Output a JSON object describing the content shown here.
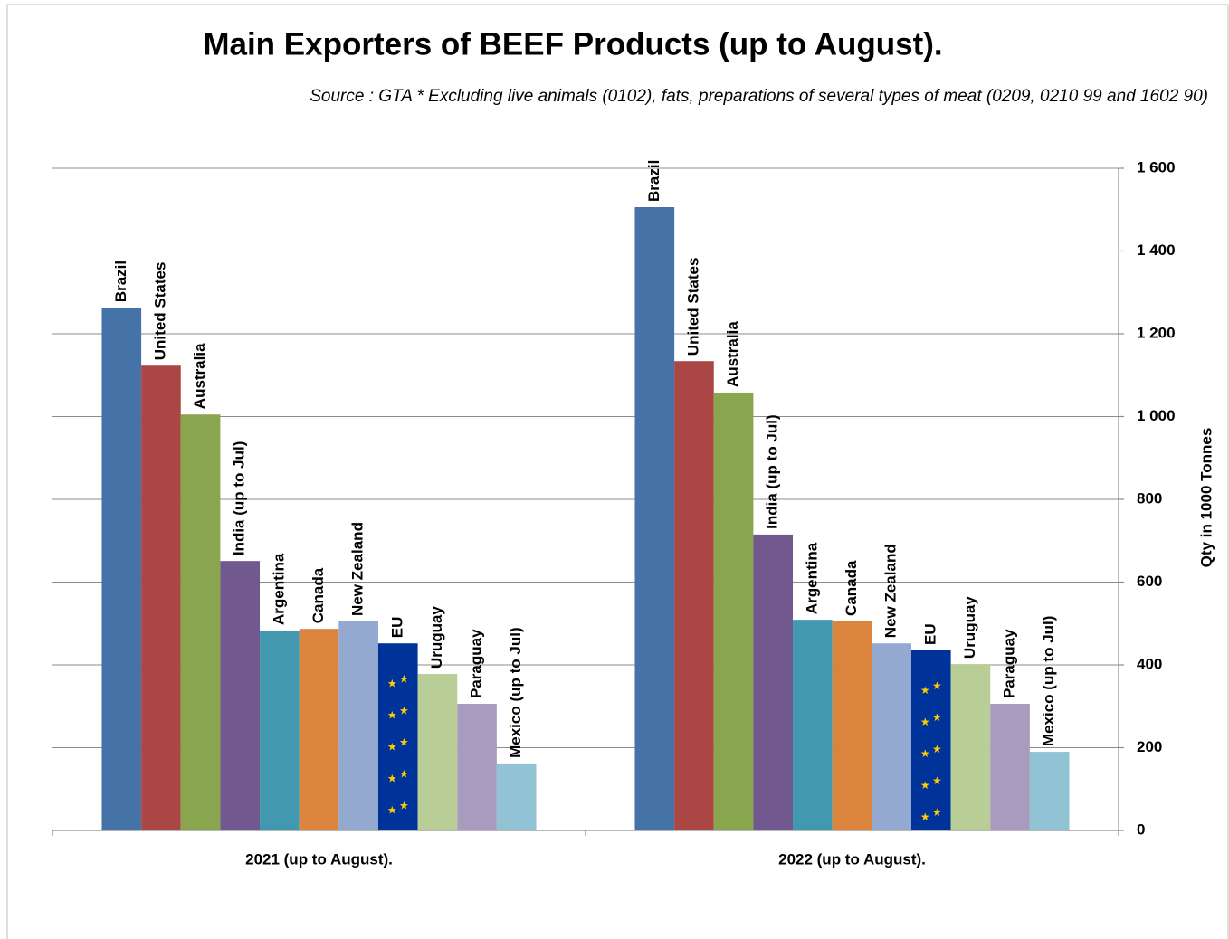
{
  "chart_data": {
    "type": "bar",
    "title": "Main Exporters of BEEF Products (up to August).",
    "subtitle": "Source : GTA * Excluding live animals (0102), fats, preparations of several types of meat (0209, 0210 99 and 1602 90)",
    "y_axis_label": "Qty in 1000 Tonnes",
    "categories": [
      "2021 (up to August).",
      "2022 (up to August)."
    ],
    "series": [
      {
        "name": "Brazil",
        "color": "#4572a7",
        "values": [
          1263,
          1506
        ]
      },
      {
        "name": "United States",
        "color": "#aa4643",
        "values": [
          1123,
          1134
        ]
      },
      {
        "name": "Australia",
        "color": "#89a54e",
        "values": [
          1005,
          1058
        ]
      },
      {
        "name": "India (up to Jul)",
        "color": "#71588f",
        "values": [
          651,
          715
        ]
      },
      {
        "name": "Argentina",
        "color": "#4198af",
        "values": [
          483,
          509
        ]
      },
      {
        "name": "Canada",
        "color": "#db843d",
        "values": [
          487,
          505
        ]
      },
      {
        "name": "New Zealand",
        "color": "#93a9cf",
        "values": [
          505,
          452
        ]
      },
      {
        "name": "EU",
        "color": "#003399",
        "values": [
          452,
          435
        ]
      },
      {
        "name": "Uruguay",
        "color": "#b9cd96",
        "values": [
          378,
          402
        ]
      },
      {
        "name": "Paraguay",
        "color": "#a99bbd",
        "values": [
          306,
          306
        ]
      },
      {
        "name": "Mexico (up to Jul)",
        "color": "#92c3d5",
        "values": [
          162,
          190
        ]
      }
    ],
    "ylim": [
      0,
      1600
    ],
    "yticks": [
      0,
      200,
      400,
      600,
      800,
      {
        "value": 1000,
        "label": "1 000"
      },
      {
        "value": 1200,
        "label": "1 200"
      },
      {
        "value": 1400,
        "label": "1 400"
      },
      {
        "value": 1600,
        "label": "1 600"
      }
    ],
    "y_axis_side": "right",
    "grid": true
  }
}
